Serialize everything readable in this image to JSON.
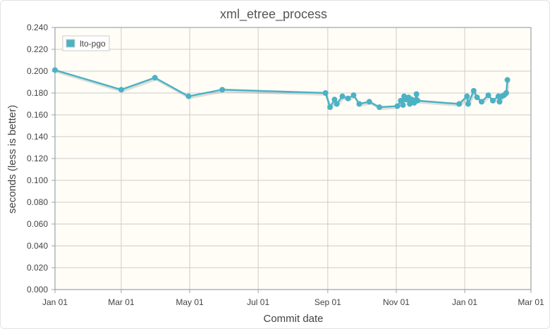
{
  "chart_data": {
    "type": "line",
    "title": "xml_etree_process",
    "xlabel": "Commit date",
    "ylabel": "seconds (less is better)",
    "x_ticks": [
      "Jan 01",
      "Mar 01",
      "May 01",
      "Jul 01",
      "Sep 01",
      "Nov 01",
      "Jan 01",
      "Mar 01"
    ],
    "y_ticks": [
      "0.000",
      "0.020",
      "0.040",
      "0.060",
      "0.080",
      "0.100",
      "0.120",
      "0.140",
      "0.160",
      "0.180",
      "0.200",
      "0.220",
      "0.240"
    ],
    "ylim": [
      0,
      0.24
    ],
    "xlim": [
      "2017-01-01",
      "2018-03-01"
    ],
    "grid": true,
    "legend_position": "top-left",
    "colors": {
      "series": "#4bb2c5",
      "plot_bg": "#fffdf6",
      "grid": "#cccccc"
    },
    "series": [
      {
        "name": "lto-pgo",
        "points": [
          [
            "2017-01-01",
            0.201
          ],
          [
            "2017-03-01",
            0.183
          ],
          [
            "2017-03-31",
            0.194
          ],
          [
            "2017-04-30",
            0.177
          ],
          [
            "2017-05-30",
            0.183
          ],
          [
            "2017-08-30",
            0.18
          ],
          [
            "2017-09-03",
            0.167
          ],
          [
            "2017-09-07",
            0.174
          ],
          [
            "2017-09-09",
            0.17
          ],
          [
            "2017-09-14",
            0.177
          ],
          [
            "2017-09-19",
            0.175
          ],
          [
            "2017-09-24",
            0.178
          ],
          [
            "2017-09-29",
            0.17
          ],
          [
            "2017-10-08",
            0.172
          ],
          [
            "2017-10-17",
            0.167
          ],
          [
            "2017-11-02",
            0.168
          ],
          [
            "2017-11-05",
            0.173
          ],
          [
            "2017-11-07",
            0.169
          ],
          [
            "2017-11-08",
            0.177
          ],
          [
            "2017-11-10",
            0.174
          ],
          [
            "2017-11-12",
            0.176
          ],
          [
            "2017-11-13",
            0.17
          ],
          [
            "2017-11-15",
            0.174
          ],
          [
            "2017-11-17",
            0.171
          ],
          [
            "2017-11-19",
            0.179
          ],
          [
            "2017-11-20",
            0.173
          ],
          [
            "2017-12-27",
            0.17
          ],
          [
            "2018-01-03",
            0.177
          ],
          [
            "2018-01-04",
            0.17
          ],
          [
            "2018-01-09",
            0.182
          ],
          [
            "2018-01-12",
            0.176
          ],
          [
            "2018-01-16",
            0.172
          ],
          [
            "2018-01-22",
            0.178
          ],
          [
            "2018-01-26",
            0.173
          ],
          [
            "2018-01-31",
            0.177
          ],
          [
            "2018-02-01",
            0.172
          ],
          [
            "2018-02-03",
            0.177
          ],
          [
            "2018-02-05",
            0.178
          ],
          [
            "2018-02-07",
            0.18
          ],
          [
            "2018-02-08",
            0.192
          ]
        ]
      }
    ]
  }
}
